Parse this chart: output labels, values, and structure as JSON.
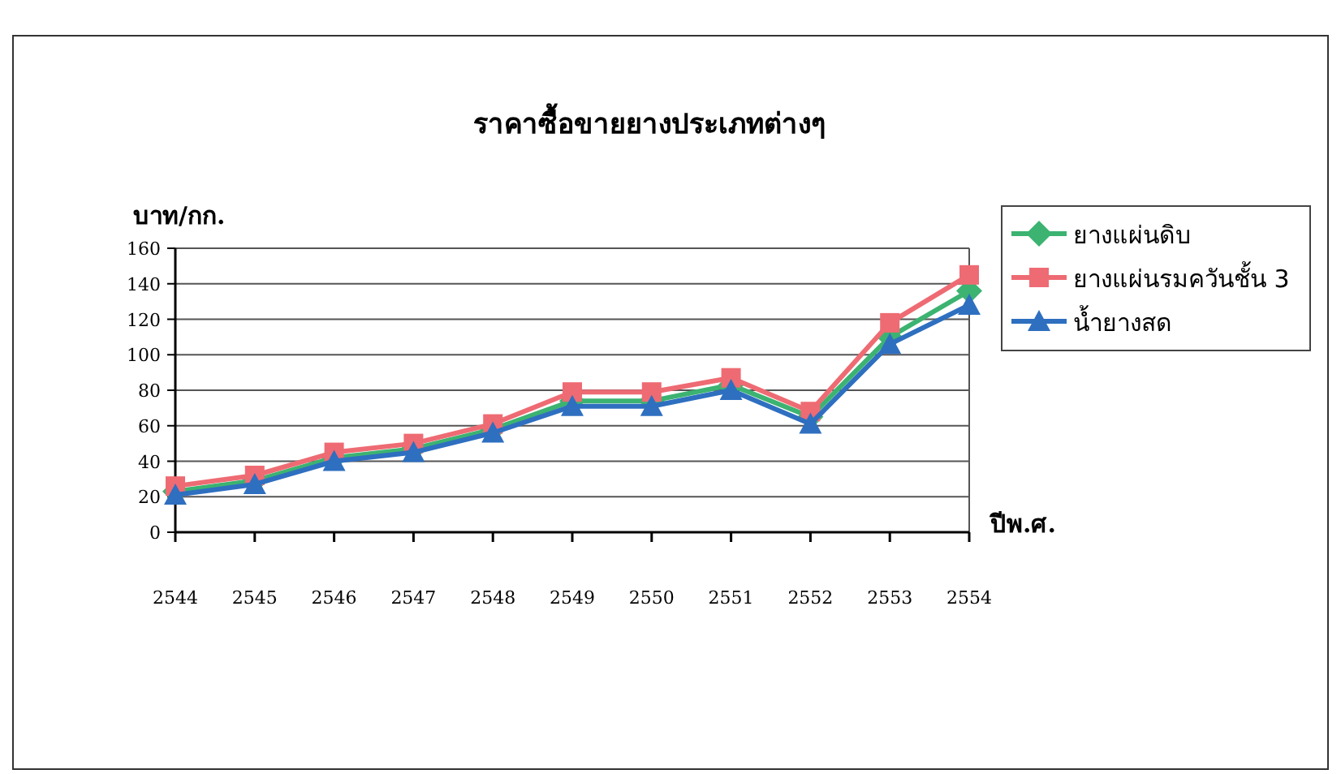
{
  "chart_data": {
    "type": "line",
    "title": "ราคาซื้อขายยางประเภทต่างๆ",
    "ylabel": "บาท/กก.",
    "xlabel": "ปีพ.ศ.",
    "categories": [
      "2544",
      "2545",
      "2546",
      "2547",
      "2548",
      "2549",
      "2550",
      "2551",
      "2552",
      "2553",
      "2554"
    ],
    "series": [
      {
        "name": "ยางแผ่นดิบ",
        "color": "#3cb371",
        "marker": "diamond",
        "values": [
          23,
          29,
          42,
          47,
          58,
          74,
          74,
          83,
          65,
          110,
          136
        ]
      },
      {
        "name": "ยางแผ่นรมควันชั้น 3",
        "color": "#ee6b73",
        "marker": "square",
        "values": [
          26,
          32,
          45,
          50,
          61,
          79,
          79,
          87,
          68,
          118,
          145
        ]
      },
      {
        "name": "น้ำยางสด",
        "color": "#2e6fc0",
        "marker": "triangle",
        "values": [
          21,
          27,
          40,
          45,
          56,
          71,
          71,
          80,
          61,
          106,
          128
        ]
      }
    ],
    "ylim": [
      0,
      160
    ],
    "yticks": [
      0,
      20,
      40,
      60,
      80,
      100,
      120,
      140,
      160
    ],
    "grid": "y",
    "legend": "right"
  }
}
